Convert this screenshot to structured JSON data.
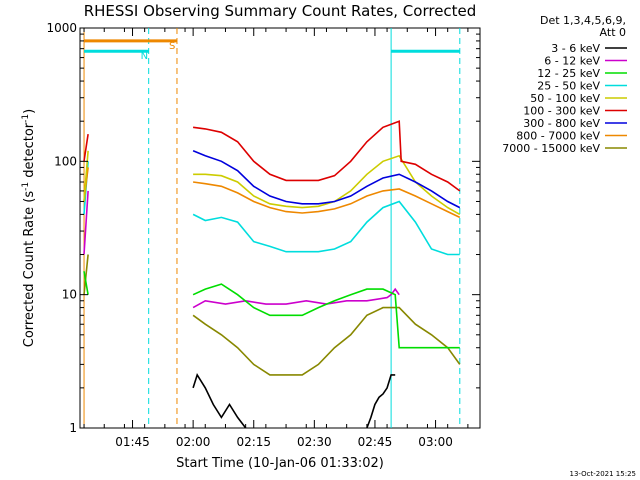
{
  "chart_data": {
    "type": "line",
    "title": "RHESSI Observing Summary Count Rates, Corrected",
    "xlabel": "Start Time (10-Jan-06 01:33:02)",
    "ylabel_parts": [
      "Corrected Count Rate (s",
      "-1",
      " detector",
      "-1",
      ")"
    ],
    "yscale": "log",
    "ylim": [
      1,
      1000
    ],
    "xlim_minutes": [
      -1,
      98
    ],
    "x_ticks": [
      {
        "minute": 12,
        "label": "01:45"
      },
      {
        "minute": 27,
        "label": "02:00"
      },
      {
        "minute": 42,
        "label": "02:15"
      },
      {
        "minute": 57,
        "label": "02:30"
      },
      {
        "minute": 72,
        "label": "02:45"
      },
      {
        "minute": 87,
        "label": "03:00"
      }
    ],
    "y_ticks": [
      {
        "value": 1,
        "label": "1"
      },
      {
        "value": 10,
        "label": "10"
      },
      {
        "value": 100,
        "label": "100"
      },
      {
        "value": 1000,
        "label": "1000"
      }
    ],
    "legend_header": [
      "Det 1,3,4,5,6,9,",
      "Att 0"
    ],
    "legend_position": "right",
    "series": [
      {
        "name": "3 - 6 keV",
        "color": "#000000",
        "x": [
          27,
          28,
          30,
          32,
          34,
          36,
          38,
          40,
          70,
          71,
          72,
          73,
          74,
          75,
          76,
          77
        ],
        "y": [
          2,
          2.5,
          2,
          1.5,
          1.2,
          1.5,
          1.2,
          1,
          1,
          1.2,
          1.5,
          1.7,
          1.8,
          2,
          2.5,
          2.5
        ]
      },
      {
        "name": "6 - 12 keV",
        "color": "#cc00cc",
        "x": [
          0,
          1,
          27,
          30,
          35,
          40,
          45,
          50,
          55,
          60,
          65,
          70,
          75,
          76,
          77,
          78
        ],
        "y": [
          20,
          60,
          8,
          9,
          8.5,
          9,
          8.5,
          8.5,
          9,
          8.5,
          9,
          9,
          9.5,
          10,
          11,
          10
        ]
      },
      {
        "name": "12 - 25 keV",
        "color": "#00dd00",
        "x": [
          0,
          1,
          27,
          30,
          34,
          38,
          42,
          46,
          50,
          54,
          58,
          62,
          66,
          70,
          74,
          77,
          78,
          82,
          86,
          90,
          93
        ],
        "y": [
          15,
          10,
          10,
          11,
          12,
          10,
          8,
          7,
          7,
          7,
          8,
          9,
          10,
          11,
          11,
          10,
          4,
          4,
          4,
          4,
          4
        ]
      },
      {
        "name": "25 - 50 keV",
        "color": "#00dddd",
        "x": [
          0,
          1,
          27,
          30,
          34,
          38,
          42,
          46,
          50,
          54,
          58,
          62,
          66,
          70,
          74,
          78,
          82,
          86,
          90,
          93
        ],
        "y": [
          40,
          100,
          40,
          36,
          38,
          35,
          25,
          23,
          21,
          21,
          21,
          22,
          25,
          35,
          45,
          50,
          35,
          22,
          20,
          20
        ]
      },
      {
        "name": "50 - 100 keV",
        "color": "#cccc00",
        "x": [
          0,
          1,
          27,
          30,
          34,
          38,
          42,
          46,
          50,
          54,
          58,
          62,
          66,
          70,
          74,
          78,
          82,
          86,
          90,
          93
        ],
        "y": [
          50,
          120,
          80,
          80,
          78,
          70,
          55,
          48,
          46,
          45,
          46,
          50,
          60,
          80,
          100,
          110,
          70,
          55,
          45,
          40
        ]
      },
      {
        "name": "100 - 300 keV",
        "color": "#dd0000",
        "x": [
          0,
          1,
          27,
          30,
          34,
          38,
          42,
          46,
          50,
          54,
          58,
          62,
          66,
          70,
          74,
          78,
          78.5,
          82,
          86,
          90,
          93
        ],
        "y": [
          100,
          160,
          180,
          175,
          165,
          140,
          100,
          80,
          72,
          72,
          72,
          78,
          100,
          140,
          180,
          200,
          100,
          95,
          80,
          70,
          60
        ]
      },
      {
        "name": "300 - 800 keV",
        "color": "#0000dd",
        "x": [
          27,
          30,
          34,
          38,
          42,
          46,
          50,
          54,
          58,
          62,
          66,
          70,
          74,
          78,
          82,
          86,
          90,
          93
        ],
        "y": [
          120,
          110,
          100,
          85,
          65,
          55,
          50,
          48,
          48,
          50,
          55,
          65,
          75,
          80,
          70,
          60,
          50,
          45
        ]
      },
      {
        "name": "800 - 7000 keV",
        "color": "#ee8800",
        "x": [
          0,
          1,
          27,
          30,
          34,
          38,
          42,
          46,
          50,
          54,
          58,
          62,
          66,
          70,
          74,
          78,
          82,
          86,
          90,
          93
        ],
        "y": [
          50,
          90,
          70,
          68,
          65,
          58,
          50,
          45,
          42,
          41,
          42,
          44,
          48,
          55,
          60,
          62,
          55,
          48,
          42,
          38
        ]
      },
      {
        "name": "7000 - 15000 keV",
        "color": "#888800",
        "x": [
          0,
          1,
          27,
          30,
          34,
          38,
          42,
          46,
          50,
          54,
          58,
          62,
          66,
          70,
          74,
          78,
          82,
          86,
          90,
          93
        ],
        "y": [
          10,
          20,
          7,
          6,
          5,
          4,
          3,
          2.5,
          2.5,
          2.5,
          3,
          4,
          5,
          7,
          8,
          8,
          6,
          5,
          4,
          3
        ]
      }
    ],
    "flag_bars": [
      {
        "label": "S",
        "color": "#ee8800",
        "x_start": 0,
        "x_end": 23,
        "y": 800
      },
      {
        "label": "N",
        "color": "#00dddd",
        "x_start": 0,
        "x_end": 16,
        "y": 670
      },
      {
        "label": "",
        "color": "#00dddd",
        "x_start": 76,
        "x_end": 93,
        "y": 670
      }
    ],
    "vertical_markers": [
      {
        "color": "#ee8800",
        "x": 0,
        "style": "solid"
      },
      {
        "color": "#ee8800",
        "x": 23,
        "style": "dashed"
      },
      {
        "color": "#00dddd",
        "x": 16,
        "style": "dashed"
      },
      {
        "color": "#00dddd",
        "x": 76,
        "style": "solid"
      },
      {
        "color": "#00dddd",
        "x": 93,
        "style": "dashed"
      }
    ],
    "grid": false
  },
  "footer_stamp": "13-Oct-2021 15:25"
}
